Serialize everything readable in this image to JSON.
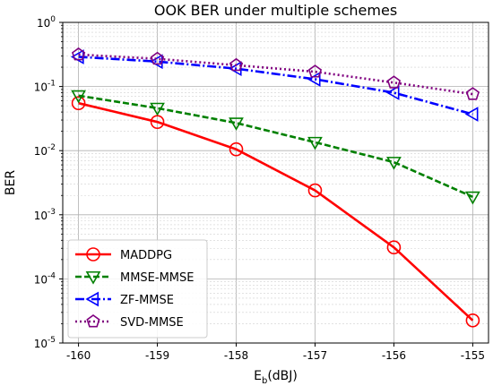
{
  "chart_data": {
    "type": "line",
    "title": "OOK BER under multiple schemes",
    "xlabel": {
      "base": "E",
      "sub": "b",
      "rest": "(dBJ)"
    },
    "ylabel": "BER",
    "x": [
      -160,
      -159,
      -158,
      -157,
      -156,
      -155
    ],
    "xlim": [
      -160.2,
      -154.8
    ],
    "ylim": [
      1e-05,
      1
    ],
    "yscale": "log",
    "x_ticks": [
      {
        "value": -160,
        "label": "-160"
      },
      {
        "value": -159,
        "label": "-159"
      },
      {
        "value": -158,
        "label": "-158"
      },
      {
        "value": -157,
        "label": "-157"
      },
      {
        "value": -156,
        "label": "-156"
      },
      {
        "value": -155,
        "label": "-155"
      }
    ],
    "y_ticks": [
      {
        "value": 1,
        "base": "10",
        "exp": "0"
      },
      {
        "value": 0.1,
        "base": "10",
        "exp": "-1"
      },
      {
        "value": 0.01,
        "base": "10",
        "exp": "-2"
      },
      {
        "value": 0.001,
        "base": "10",
        "exp": "-3"
      },
      {
        "value": 0.0001,
        "base": "10",
        "exp": "-4"
      },
      {
        "value": 1e-05,
        "base": "10",
        "exp": "-5"
      }
    ],
    "grid": true,
    "legend_position": "lower-left",
    "series": [
      {
        "name": "MADDPG",
        "color": "#ff0000",
        "dash": "solid",
        "marker": "circle",
        "values": [
          0.055,
          0.028,
          0.0105,
          0.0024,
          0.00031,
          2.25e-05
        ]
      },
      {
        "name": "MMSE-MMSE",
        "color": "#008000",
        "dash": "dashed",
        "marker": "triangle-down",
        "values": [
          0.072,
          0.046,
          0.027,
          0.0135,
          0.0066,
          0.0019
        ]
      },
      {
        "name": "ZF-MMSE",
        "color": "#0000ff",
        "dash": "dashdot",
        "marker": "triangle-left",
        "values": [
          0.29,
          0.245,
          0.19,
          0.13,
          0.08,
          0.037
        ]
      },
      {
        "name": "SVD-MMSE",
        "color": "#800080",
        "dash": "dotted",
        "marker": "pentagon",
        "values": [
          0.315,
          0.27,
          0.215,
          0.17,
          0.115,
          0.076
        ]
      }
    ]
  }
}
